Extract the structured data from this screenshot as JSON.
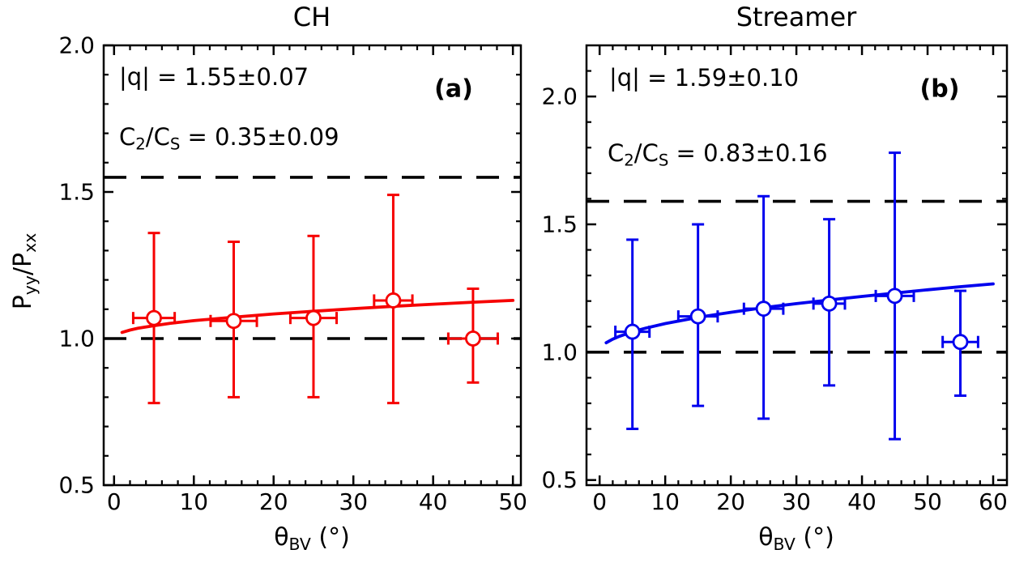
{
  "chart_data": {
    "type": "scatter",
    "panels": [
      {
        "title": "CH",
        "panel_label": "(a)",
        "color": "#f60000",
        "xlim": [
          -1.3,
          51.0
        ],
        "ylim": [
          0.5,
          2.0
        ],
        "x_ticks": {
          "values": [
            0,
            10,
            20,
            30,
            40,
            50
          ],
          "labels": [
            "0",
            "10",
            "20",
            "30",
            "40",
            "50"
          ],
          "minor_step": 2
        },
        "y_ticks": {
          "values": [
            0.5,
            1.0,
            1.5,
            2.0
          ],
          "labels": [
            "0.5",
            "1.0",
            "1.5",
            "2.0"
          ],
          "minor_step": 0.1
        },
        "dashed_hlines": [
          1.0,
          1.55
        ],
        "points": [
          {
            "x": 5,
            "y": 1.07,
            "xerr": 2.6,
            "ylo": 0.78,
            "yhi": 1.36
          },
          {
            "x": 15,
            "y": 1.06,
            "xerr": 2.9,
            "ylo": 0.8,
            "yhi": 1.33
          },
          {
            "x": 25,
            "y": 1.07,
            "xerr": 2.9,
            "ylo": 0.8,
            "yhi": 1.35
          },
          {
            "x": 35,
            "y": 1.13,
            "xerr": 2.4,
            "ylo": 0.78,
            "yhi": 1.49
          },
          {
            "x": 45,
            "y": 1.0,
            "xerr": 3.1,
            "ylo": 0.85,
            "yhi": 1.17
          }
        ],
        "fit_curve": {
          "x": [
            1,
            2,
            3,
            5,
            7,
            10,
            15,
            20,
            25,
            30,
            35,
            40,
            45,
            50
          ],
          "y": [
            1.021,
            1.029,
            1.035,
            1.044,
            1.052,
            1.061,
            1.073,
            1.084,
            1.093,
            1.102,
            1.11,
            1.117,
            1.124,
            1.13
          ]
        },
        "annotations": {
          "q_label": "|q| = 1.55±0.07",
          "c2cs_parts": [
            "C",
            "2",
            "/C",
            "S",
            " = 0.35±0.09"
          ]
        },
        "xlabel_parts": [
          "θ",
          "BV",
          " (°)"
        ],
        "ylabel_parts": [
          "P",
          "yy",
          "/P",
          "xx"
        ]
      },
      {
        "title": "Streamer",
        "panel_label": "(b)",
        "color": "#0000ee",
        "xlim": [
          -2.0,
          62.1
        ],
        "ylim": [
          0.48,
          2.2
        ],
        "x_ticks": {
          "values": [
            0,
            10,
            20,
            30,
            40,
            50,
            60
          ],
          "labels": [
            "0",
            "10",
            "20",
            "30",
            "40",
            "50",
            "60"
          ],
          "minor_step": 2
        },
        "y_ticks": {
          "values": [
            0.5,
            1.0,
            1.5,
            2.0
          ],
          "labels": [
            "0.5",
            "1.0",
            "1.5",
            "2.0"
          ],
          "minor_step": 0.1
        },
        "dashed_hlines": [
          1.0,
          1.59
        ],
        "points": [
          {
            "x": 5,
            "y": 1.08,
            "xerr": 2.6,
            "ylo": 0.7,
            "yhi": 1.44
          },
          {
            "x": 15,
            "y": 1.14,
            "xerr": 3.0,
            "ylo": 0.79,
            "yhi": 1.5
          },
          {
            "x": 25,
            "y": 1.17,
            "xerr": 3.0,
            "ylo": 0.74,
            "yhi": 1.61
          },
          {
            "x": 35,
            "y": 1.19,
            "xerr": 2.4,
            "ylo": 0.87,
            "yhi": 1.52
          },
          {
            "x": 45,
            "y": 1.22,
            "xerr": 2.9,
            "ylo": 0.66,
            "yhi": 1.78
          },
          {
            "x": 55,
            "y": 1.04,
            "xerr": 2.7,
            "ylo": 0.83,
            "yhi": 1.24
          }
        ],
        "fit_curve": {
          "x": [
            1,
            2,
            3,
            5,
            7,
            10,
            15,
            20,
            25,
            30,
            35,
            40,
            45,
            50,
            55,
            60
          ],
          "y": [
            1.037,
            1.051,
            1.062,
            1.08,
            1.094,
            1.112,
            1.136,
            1.156,
            1.174,
            1.19,
            1.204,
            1.218,
            1.231,
            1.244,
            1.256,
            1.267
          ]
        },
        "annotations": {
          "q_label": "|q| = 1.59±0.10",
          "c2cs_parts": [
            "C",
            "2",
            "/C",
            "S",
            " = 0.83±0.16"
          ]
        },
        "xlabel_parts": [
          "θ",
          "BV",
          " (°)"
        ]
      }
    ]
  }
}
